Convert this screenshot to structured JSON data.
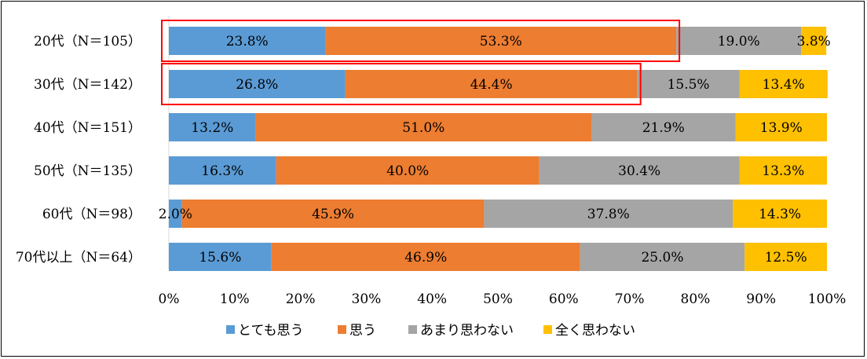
{
  "chart_data": {
    "type": "bar",
    "orientation": "horizontal",
    "stacked": "percent",
    "categories": [
      "20代（N＝105）",
      "30代（N＝142）",
      "40代（N＝151）",
      "50代（N＝135）",
      "60代（N＝98）",
      "70代以上（N＝64）"
    ],
    "series": [
      {
        "name": "とても思う",
        "color": "#5b9bd5",
        "values": [
          23.8,
          26.8,
          13.2,
          16.3,
          2.0,
          15.6
        ]
      },
      {
        "name": "思う",
        "color": "#ed7d31",
        "values": [
          53.3,
          44.4,
          51.0,
          40.0,
          45.9,
          46.9
        ]
      },
      {
        "name": "あまり思わない",
        "color": "#a5a5a5",
        "values": [
          19.0,
          15.5,
          21.9,
          30.4,
          37.8,
          25.0
        ]
      },
      {
        "name": "全く思わない",
        "color": "#ffc000",
        "values": [
          3.8,
          13.4,
          13.9,
          13.3,
          14.3,
          12.5
        ]
      }
    ],
    "data_labels": [
      [
        "23.8%",
        "53.3%",
        "19.0%",
        "3.8%"
      ],
      [
        "26.8%",
        "44.4%",
        "15.5%",
        "13.4%"
      ],
      [
        "13.2%",
        "51.0%",
        "21.9%",
        "13.9%"
      ],
      [
        "16.3%",
        "40.0%",
        "30.4%",
        "13.3%"
      ],
      [
        "2.0%",
        "45.9%",
        "37.8%",
        "14.3%"
      ],
      [
        "15.6%",
        "46.9%",
        "25.0%",
        "12.5%"
      ]
    ],
    "xlim": [
      0,
      100
    ],
    "xticks": [
      "0%",
      "10%",
      "20%",
      "30%",
      "40%",
      "50%",
      "60%",
      "70%",
      "80%",
      "90%",
      "100%"
    ],
    "legend_position": "bottom",
    "highlights": [
      {
        "row": 0,
        "through_series": 1,
        "color": "#ff0000"
      },
      {
        "row": 1,
        "through_series": 1,
        "color": "#ff0000"
      }
    ]
  }
}
